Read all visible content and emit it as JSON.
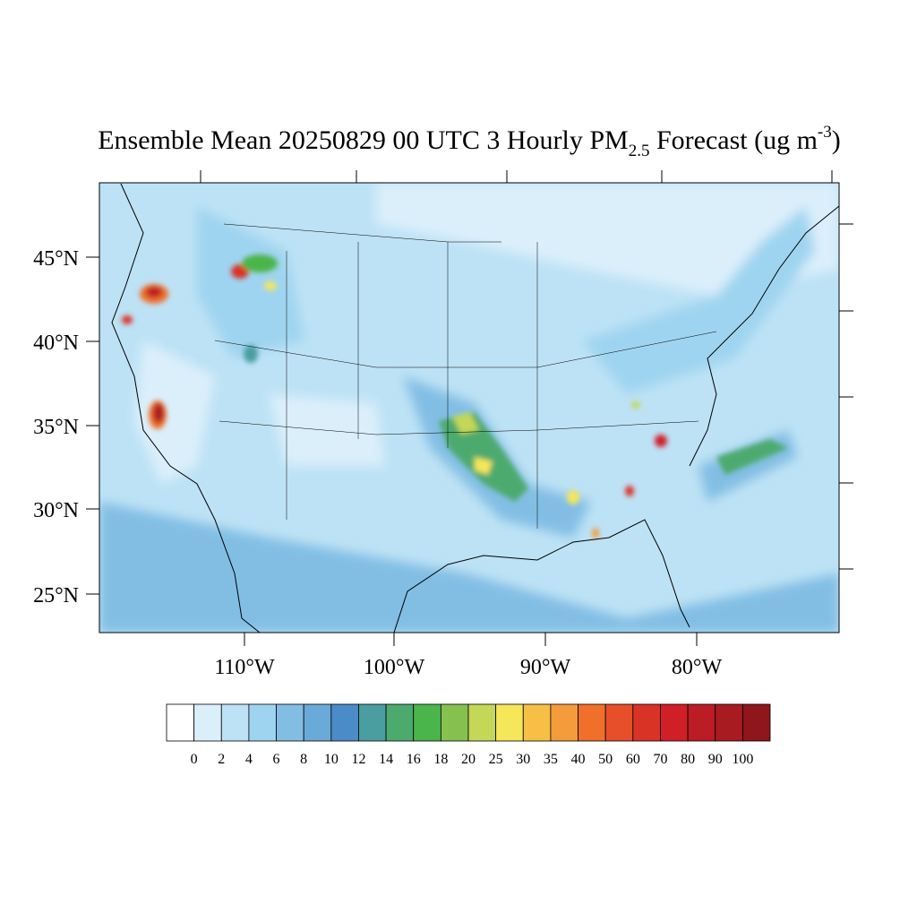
{
  "title": {
    "main": "Ensemble Mean 20250829 00 UTC 3 Hourly PM",
    "subscript": "2.5",
    "after": " Forecast (ug m",
    "superscript": "-3",
    "close": ")"
  },
  "lat_labels": [
    "45°N",
    "40°N",
    "35°N",
    "30°N",
    "25°N"
  ],
  "lon_labels": [
    "110°W",
    "100°W",
    "90°W",
    "80°W"
  ],
  "colorbar": {
    "levels": [
      0,
      2,
      4,
      6,
      8,
      10,
      12,
      14,
      16,
      18,
      20,
      25,
      30,
      35,
      40,
      50,
      60,
      70,
      80,
      90,
      100
    ],
    "colors": [
      "#ffffff",
      "#dbeffb",
      "#bde2f5",
      "#9fd4f0",
      "#82bee4",
      "#6aaad9",
      "#4b8bc8",
      "#4a9ea0",
      "#4daa6e",
      "#4ab54a",
      "#86c150",
      "#c4d756",
      "#f5e65a",
      "#f6c047",
      "#f49c3b",
      "#f06f2a",
      "#e64f2a",
      "#d93326",
      "#d01f27",
      "#bb1c25",
      "#a81b21",
      "#8f161a"
    ]
  }
}
